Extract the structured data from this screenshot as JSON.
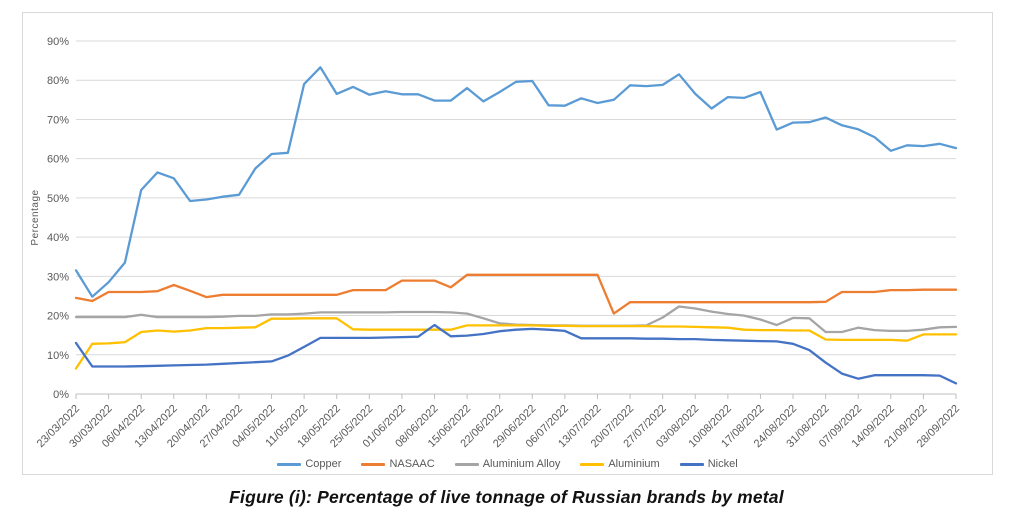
{
  "figure_caption": "Figure (i): Percentage of live tonnage of Russian brands by metal",
  "chart_data": {
    "type": "line",
    "title": "",
    "xlabel": "",
    "ylabel": "Percentage",
    "ylim": [
      0,
      90
    ],
    "grid": true,
    "legend_position": "bottom",
    "axis_text_color": "#595959",
    "gridline_color": "#d9d9d9",
    "axis_line_color": "#bfbfbf",
    "y_ticks": [
      "0%",
      "10%",
      "20%",
      "30%",
      "40%",
      "50%",
      "60%",
      "70%",
      "80%",
      "90%"
    ],
    "x_labels": [
      "23/03/2022",
      "30/03/2022",
      "06/04/2022",
      "13/04/2022",
      "20/04/2022",
      "27/04/2022",
      "04/05/2022",
      "11/05/2022",
      "18/05/2022",
      "25/05/2022",
      "01/06/2022",
      "08/06/2022",
      "15/06/2022",
      "22/06/2022",
      "29/06/2022",
      "06/07/2022",
      "13/07/2022",
      "20/07/2022",
      "27/07/2022",
      "03/08/2022",
      "10/08/2022",
      "17/08/2022",
      "24/08/2022",
      "31/08/2022",
      "07/09/2022",
      "14/09/2022",
      "21/09/2022",
      "28/09/2022"
    ],
    "points_per_label_interval": 2,
    "series": [
      {
        "name": "Copper",
        "color": "#5B9BD5",
        "values": [
          31.5,
          24.8,
          28.5,
          33.5,
          52.0,
          56.5,
          55.0,
          49.2,
          49.6,
          50.3,
          50.8,
          57.5,
          61.2,
          61.5,
          79.0,
          83.3,
          76.5,
          78.3,
          76.3,
          77.2,
          76.4,
          76.4,
          74.8,
          74.8,
          78.0,
          74.6,
          77.0,
          79.6,
          79.8,
          73.6,
          73.5,
          75.4,
          74.2,
          75.0,
          78.7,
          78.5,
          78.8,
          81.5,
          76.5,
          72.8,
          75.7,
          75.5,
          77.0,
          67.4,
          69.2,
          69.3,
          70.5,
          68.5,
          67.5,
          65.5,
          62.0,
          63.4,
          63.2,
          63.8,
          62.7
        ]
      },
      {
        "name": "NASAAC",
        "color": "#ED7D31",
        "values": [
          24.5,
          23.7,
          26.0,
          26.0,
          26.0,
          26.2,
          27.8,
          26.3,
          24.7,
          25.3,
          25.3,
          25.3,
          25.3,
          25.3,
          25.3,
          25.3,
          25.3,
          26.5,
          26.5,
          26.5,
          28.9,
          28.9,
          28.9,
          27.2,
          30.4,
          30.4,
          30.4,
          30.4,
          30.4,
          30.4,
          30.4,
          30.4,
          30.4,
          20.5,
          23.4,
          23.4,
          23.4,
          23.4,
          23.4,
          23.4,
          23.4,
          23.4,
          23.4,
          23.4,
          23.4,
          23.4,
          23.5,
          26.0,
          26.0,
          26.0,
          26.5,
          26.5,
          26.6,
          26.6,
          26.6
        ]
      },
      {
        "name": "Aluminium Alloy",
        "color": "#A5A5A5",
        "values": [
          19.6,
          19.6,
          19.6,
          19.6,
          20.2,
          19.6,
          19.6,
          19.6,
          19.6,
          19.7,
          19.9,
          19.9,
          20.3,
          20.3,
          20.5,
          20.8,
          20.8,
          20.8,
          20.8,
          20.8,
          20.9,
          20.9,
          20.9,
          20.8,
          20.5,
          19.3,
          18.0,
          17.7,
          17.6,
          17.5,
          17.5,
          17.4,
          17.4,
          17.4,
          17.4,
          17.5,
          19.5,
          22.3,
          21.8,
          21.0,
          20.4,
          20.0,
          19.0,
          17.6,
          19.4,
          19.3,
          15.8,
          15.8,
          16.9,
          16.3,
          16.1,
          16.1,
          16.4,
          17.0,
          17.1
        ]
      },
      {
        "name": "Aluminium",
        "color": "#FFC000",
        "values": [
          6.5,
          12.8,
          12.9,
          13.2,
          15.8,
          16.2,
          15.9,
          16.2,
          16.8,
          16.8,
          16.9,
          17.0,
          19.2,
          19.2,
          19.3,
          19.3,
          19.3,
          16.5,
          16.4,
          16.4,
          16.4,
          16.4,
          16.4,
          16.4,
          17.5,
          17.5,
          17.5,
          17.5,
          17.5,
          17.4,
          17.4,
          17.3,
          17.3,
          17.3,
          17.3,
          17.3,
          17.2,
          17.2,
          17.1,
          17.0,
          16.9,
          16.4,
          16.3,
          16.3,
          16.2,
          16.2,
          13.9,
          13.8,
          13.8,
          13.8,
          13.8,
          13.6,
          15.2,
          15.2,
          15.2
        ]
      },
      {
        "name": "Nickel",
        "color": "#4472C4",
        "values": [
          13.0,
          7.0,
          7.0,
          7.0,
          7.1,
          7.2,
          7.3,
          7.4,
          7.5,
          7.7,
          7.9,
          8.1,
          8.3,
          9.8,
          12.0,
          14.3,
          14.3,
          14.3,
          14.3,
          14.4,
          14.5,
          14.6,
          17.6,
          14.7,
          14.9,
          15.3,
          16.0,
          16.4,
          16.6,
          16.4,
          16.1,
          14.2,
          14.2,
          14.2,
          14.2,
          14.1,
          14.1,
          14.0,
          14.0,
          13.8,
          13.7,
          13.6,
          13.5,
          13.4,
          12.8,
          11.2,
          8.0,
          5.2,
          3.9,
          4.8,
          4.8,
          4.8,
          4.8,
          4.7,
          2.7
        ]
      }
    ]
  }
}
